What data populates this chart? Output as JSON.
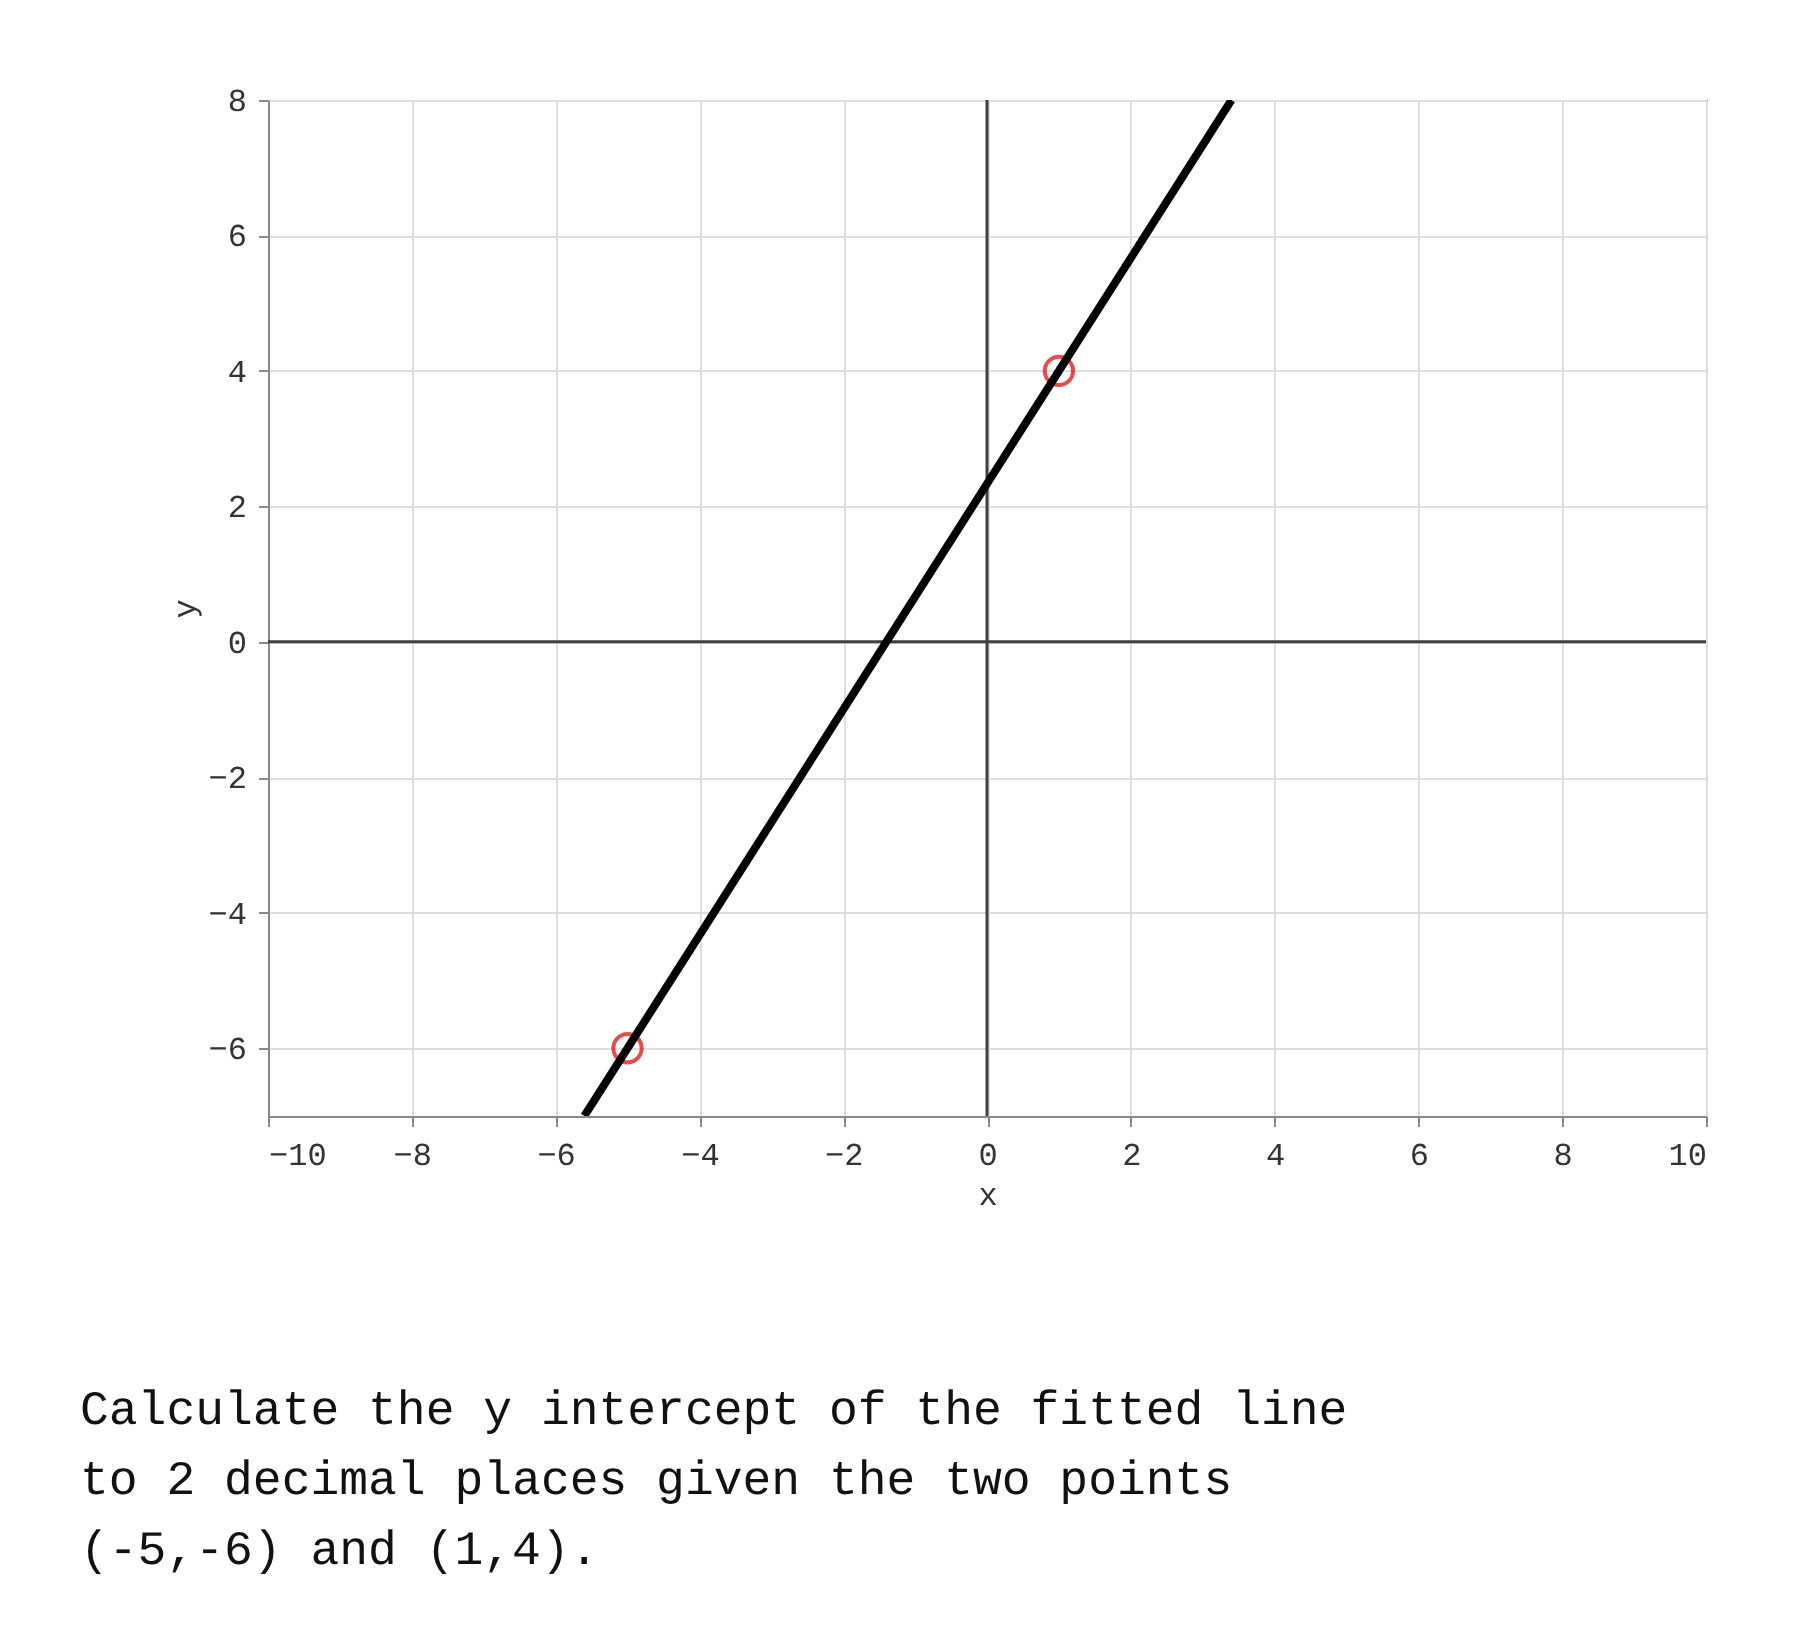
{
  "chart_data": {
    "type": "line",
    "xlabel": "x",
    "ylabel": "y",
    "xlim": [
      -10,
      10
    ],
    "xticks": [
      -10,
      -8,
      -6,
      -4,
      -2,
      0,
      2,
      4,
      6,
      8,
      10
    ],
    "ylim": [
      -7,
      8
    ],
    "yticks": [
      -6,
      -4,
      -2,
      0,
      2,
      4,
      6,
      8
    ],
    "grid": true,
    "series": [
      {
        "color": "#000000",
        "x": [
          -5.6,
          3.4
        ],
        "values": [
          -7,
          8
        ],
        "marker": "none",
        "line_style": "solid"
      },
      {
        "type": "scatter",
        "color": "#e00000",
        "x": [
          -5,
          1
        ],
        "values": [
          -6,
          4
        ],
        "marker": "circle"
      },
      {
        "color": "#404040",
        "x": [
          0,
          0
        ],
        "values": [
          -7,
          8
        ],
        "marker": "none",
        "line_style": "solid"
      },
      {
        "color": "#404040",
        "x": [
          -10,
          10
        ],
        "values": [
          0,
          0
        ],
        "marker": "none",
        "line_style": "solid"
      }
    ],
    "annotations": [
      "Calculate the y intercept of the fitted line",
      "to 2 decimal places given the two points",
      "(-5,-6) and (1,4)."
    ]
  }
}
